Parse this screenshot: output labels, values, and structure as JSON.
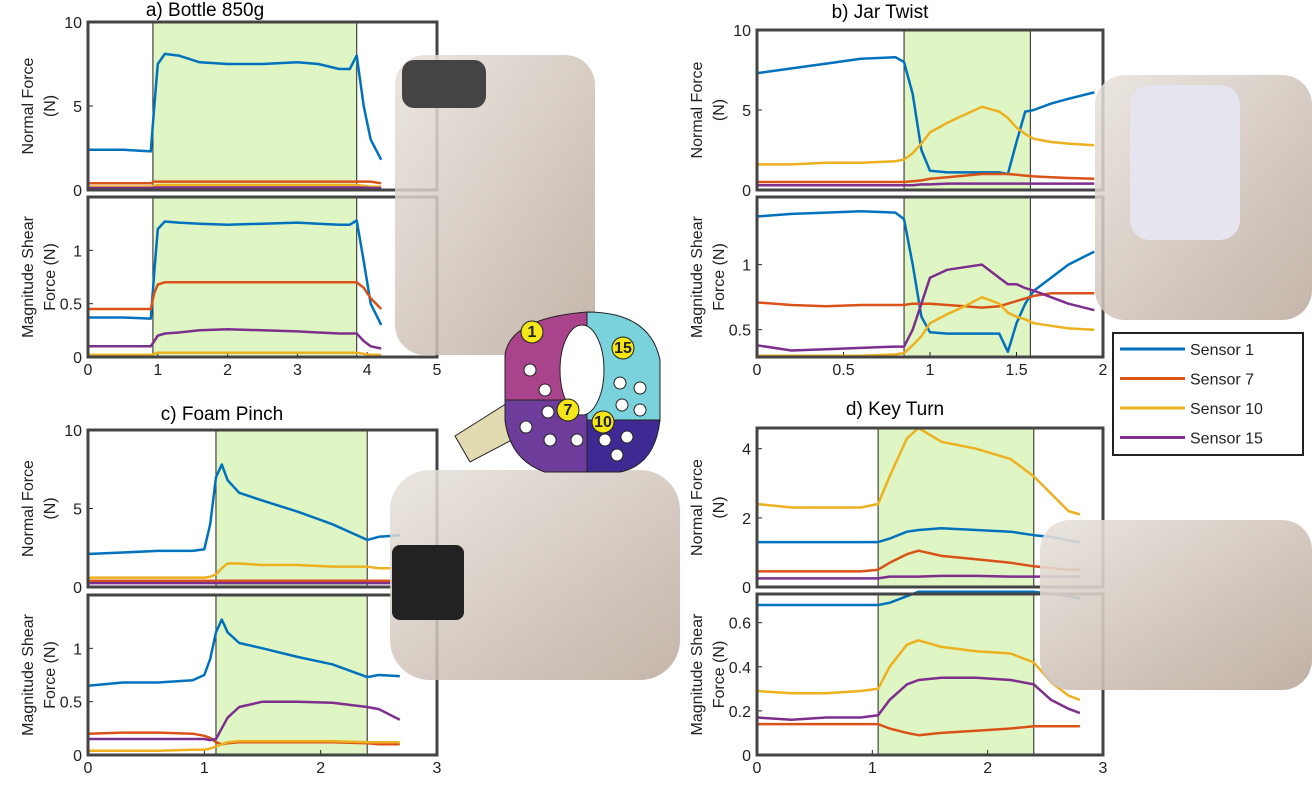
{
  "chart_data": [
    {
      "type": "line",
      "title": "a) Bottle 850g",
      "ylabel": [
        "Normal Force",
        "(N)"
      ],
      "x": [
        0,
        0.5,
        0.9,
        0.95,
        1.0,
        1.1,
        1.3,
        1.6,
        2,
        2.5,
        3,
        3.3,
        3.6,
        3.75,
        3.85,
        3.95,
        4.05,
        4.2
      ],
      "xlim": [
        0,
        5
      ],
      "ylim": [
        0,
        10
      ],
      "yticks": [
        0,
        5,
        10
      ],
      "highlight": [
        0.93,
        3.85
      ],
      "series": [
        {
          "values": [
            2.4,
            2.4,
            2.3,
            5,
            7.5,
            8.1,
            8.0,
            7.6,
            7.5,
            7.5,
            7.6,
            7.5,
            7.2,
            7.2,
            8.0,
            5,
            3,
            1.8
          ]
        },
        {
          "values": [
            0.4,
            0.4,
            0.4,
            0.5,
            0.5,
            0.5,
            0.5,
            0.5,
            0.5,
            0.5,
            0.5,
            0.5,
            0.5,
            0.5,
            0.5,
            0.5,
            0.5,
            0.4
          ]
        },
        {
          "values": [
            0.2,
            0.2,
            0.2,
            0.25,
            0.3,
            0.3,
            0.3,
            0.3,
            0.3,
            0.3,
            0.3,
            0.3,
            0.3,
            0.3,
            0.3,
            0.25,
            0.2,
            0.2
          ]
        },
        {
          "values": [
            0.12,
            0.12,
            0.12,
            0.14,
            0.15,
            0.15,
            0.15,
            0.15,
            0.15,
            0.15,
            0.15,
            0.15,
            0.15,
            0.15,
            0.15,
            0.14,
            0.12,
            0.12
          ]
        }
      ]
    },
    {
      "type": "line",
      "ylabel": [
        "Magnitude Shear",
        "Force (N)"
      ],
      "x": [
        0,
        0.5,
        0.9,
        0.95,
        1.0,
        1.1,
        1.3,
        1.6,
        2,
        2.5,
        3,
        3.3,
        3.6,
        3.75,
        3.85,
        3.95,
        4.05,
        4.2
      ],
      "xlim": [
        0,
        5
      ],
      "xticks": [
        0,
        1,
        2,
        3,
        4,
        5
      ],
      "ylim": [
        0,
        1.5
      ],
      "yticks": [
        0,
        0.5,
        1
      ],
      "highlight": [
        0.93,
        3.85
      ],
      "series": [
        {
          "values": [
            0.37,
            0.37,
            0.36,
            0.8,
            1.2,
            1.27,
            1.26,
            1.25,
            1.24,
            1.25,
            1.26,
            1.25,
            1.24,
            1.24,
            1.28,
            0.9,
            0.5,
            0.3
          ]
        },
        {
          "values": [
            0.45,
            0.45,
            0.45,
            0.6,
            0.68,
            0.7,
            0.7,
            0.7,
            0.7,
            0.7,
            0.7,
            0.7,
            0.7,
            0.7,
            0.7,
            0.65,
            0.55,
            0.45
          ]
        },
        {
          "values": [
            0.02,
            0.02,
            0.02,
            0.03,
            0.04,
            0.04,
            0.04,
            0.04,
            0.04,
            0.04,
            0.04,
            0.04,
            0.04,
            0.04,
            0.04,
            0.03,
            0.02,
            0.02
          ]
        },
        {
          "values": [
            0.1,
            0.1,
            0.1,
            0.15,
            0.2,
            0.22,
            0.23,
            0.25,
            0.26,
            0.25,
            0.24,
            0.23,
            0.22,
            0.22,
            0.22,
            0.15,
            0.1,
            0.08
          ]
        }
      ]
    },
    {
      "type": "line",
      "title": "b) Jar Twist",
      "ylabel": [
        "Normal Force",
        "(N)"
      ],
      "x": [
        0,
        0.2,
        0.4,
        0.6,
        0.8,
        0.85,
        0.9,
        0.95,
        1.0,
        1.1,
        1.2,
        1.3,
        1.4,
        1.45,
        1.5,
        1.55,
        1.6,
        1.7,
        1.8,
        1.95
      ],
      "xlim": [
        0,
        2
      ],
      "ylim": [
        0,
        10
      ],
      "yticks": [
        0,
        5,
        10
      ],
      "highlight": [
        0.85,
        1.58
      ],
      "series": [
        {
          "values": [
            7.3,
            7.6,
            7.9,
            8.2,
            8.3,
            8.0,
            6,
            2.5,
            1.2,
            1.1,
            1.1,
            1.1,
            1.1,
            1.0,
            3,
            4.9,
            5,
            5.4,
            5.7,
            6.1
          ]
        },
        {
          "values": [
            0.5,
            0.5,
            0.5,
            0.5,
            0.5,
            0.5,
            0.55,
            0.6,
            0.7,
            0.8,
            0.9,
            1.0,
            1.0,
            1.0,
            0.95,
            0.9,
            0.85,
            0.8,
            0.75,
            0.7
          ]
        },
        {
          "values": [
            1.6,
            1.6,
            1.7,
            1.7,
            1.8,
            1.9,
            2.3,
            2.9,
            3.6,
            4.2,
            4.7,
            5.2,
            4.9,
            4.5,
            3.9,
            3.5,
            3.2,
            3.0,
            2.9,
            2.8
          ]
        },
        {
          "values": [
            0.3,
            0.3,
            0.3,
            0.3,
            0.3,
            0.3,
            0.3,
            0.35,
            0.35,
            0.4,
            0.4,
            0.4,
            0.4,
            0.4,
            0.4,
            0.4,
            0.4,
            0.4,
            0.4,
            0.4
          ]
        }
      ]
    },
    {
      "type": "line",
      "ylabel": [
        "Magnitude Shear",
        "Force (N)"
      ],
      "x": [
        0,
        0.2,
        0.4,
        0.6,
        0.8,
        0.85,
        0.9,
        0.95,
        1.0,
        1.1,
        1.2,
        1.3,
        1.4,
        1.45,
        1.5,
        1.55,
        1.6,
        1.7,
        1.8,
        1.95
      ],
      "xlim": [
        0,
        2
      ],
      "xticks": [
        0,
        0.5,
        1,
        1.5,
        2
      ],
      "ylim": [
        0.29,
        1.52
      ],
      "yticks": [
        0.5,
        1
      ],
      "highlight": [
        0.85,
        1.58
      ],
      "series": [
        {
          "values": [
            1.37,
            1.39,
            1.4,
            1.41,
            1.4,
            1.35,
            1.0,
            0.6,
            0.48,
            0.47,
            0.47,
            0.47,
            0.47,
            0.33,
            0.55,
            0.7,
            0.8,
            0.9,
            1.0,
            1.1
          ]
        },
        {
          "values": [
            0.71,
            0.69,
            0.68,
            0.69,
            0.69,
            0.69,
            0.7,
            0.7,
            0.7,
            0.69,
            0.68,
            0.67,
            0.68,
            0.7,
            0.72,
            0.74,
            0.76,
            0.78,
            0.78,
            0.78
          ]
        },
        {
          "values": [
            0.3,
            0.3,
            0.3,
            0.3,
            0.31,
            0.32,
            0.38,
            0.45,
            0.55,
            0.62,
            0.68,
            0.75,
            0.7,
            0.63,
            0.6,
            0.58,
            0.55,
            0.53,
            0.51,
            0.5
          ]
        },
        {
          "values": [
            0.38,
            0.34,
            0.35,
            0.36,
            0.37,
            0.37,
            0.5,
            0.7,
            0.9,
            0.96,
            0.98,
            1.0,
            0.9,
            0.85,
            0.85,
            0.82,
            0.8,
            0.75,
            0.7,
            0.65
          ]
        }
      ]
    },
    {
      "type": "line",
      "title": "c) Foam Pinch",
      "ylabel": [
        "Normal Force",
        "(N)"
      ],
      "x": [
        0,
        0.3,
        0.6,
        0.9,
        1.0,
        1.05,
        1.1,
        1.15,
        1.2,
        1.3,
        1.5,
        1.8,
        2.1,
        2.4,
        2.5,
        2.68
      ],
      "xlim": [
        0,
        3
      ],
      "ylim": [
        0,
        10
      ],
      "yticks": [
        0,
        5,
        10
      ],
      "highlight": [
        1.1,
        2.4
      ],
      "series": [
        {
          "values": [
            2.1,
            2.2,
            2.3,
            2.3,
            2.4,
            4,
            7,
            7.8,
            6.8,
            6.0,
            5.5,
            4.8,
            4.0,
            3.0,
            3.2,
            3.3
          ]
        },
        {
          "values": [
            0.4,
            0.4,
            0.4,
            0.4,
            0.4,
            0.4,
            0.4,
            0.4,
            0.4,
            0.4,
            0.4,
            0.4,
            0.4,
            0.4,
            0.4,
            0.4
          ]
        },
        {
          "values": [
            0.6,
            0.6,
            0.6,
            0.6,
            0.6,
            0.65,
            0.8,
            1.2,
            1.5,
            1.5,
            1.4,
            1.4,
            1.3,
            1.3,
            1.2,
            1.2
          ]
        },
        {
          "values": [
            0.25,
            0.25,
            0.25,
            0.25,
            0.25,
            0.25,
            0.25,
            0.25,
            0.25,
            0.25,
            0.25,
            0.25,
            0.25,
            0.25,
            0.25,
            0.25
          ]
        }
      ]
    },
    {
      "type": "line",
      "ylabel": [
        "Magnitude Shear",
        "Force (N)"
      ],
      "x": [
        0,
        0.3,
        0.6,
        0.9,
        1.0,
        1.05,
        1.1,
        1.15,
        1.2,
        1.3,
        1.5,
        1.8,
        2.1,
        2.4,
        2.5,
        2.68
      ],
      "xlim": [
        0,
        3
      ],
      "xticks": [
        0,
        1,
        2,
        3
      ],
      "ylim": [
        0,
        1.5
      ],
      "yticks": [
        0,
        0.5,
        1
      ],
      "highlight": [
        1.1,
        2.4
      ],
      "series": [
        {
          "values": [
            0.65,
            0.68,
            0.68,
            0.7,
            0.75,
            0.9,
            1.15,
            1.27,
            1.15,
            1.05,
            1.0,
            0.92,
            0.85,
            0.73,
            0.75,
            0.74
          ]
        },
        {
          "values": [
            0.2,
            0.21,
            0.21,
            0.2,
            0.18,
            0.16,
            0.12,
            0.1,
            0.11,
            0.12,
            0.12,
            0.12,
            0.12,
            0.11,
            0.1,
            0.1
          ]
        },
        {
          "values": [
            0.04,
            0.04,
            0.04,
            0.05,
            0.05,
            0.06,
            0.08,
            0.1,
            0.12,
            0.13,
            0.13,
            0.13,
            0.13,
            0.12,
            0.12,
            0.12
          ]
        },
        {
          "values": [
            0.15,
            0.15,
            0.15,
            0.15,
            0.15,
            0.14,
            0.15,
            0.25,
            0.35,
            0.45,
            0.5,
            0.5,
            0.49,
            0.45,
            0.43,
            0.33
          ]
        }
      ]
    },
    {
      "type": "line",
      "title": "d) Key Turn",
      "ylabel": [
        "Normal Force",
        "(N)"
      ],
      "x": [
        0,
        0.3,
        0.6,
        0.9,
        1.05,
        1.15,
        1.3,
        1.4,
        1.6,
        1.9,
        2.2,
        2.4,
        2.55,
        2.7,
        2.8
      ],
      "xlim": [
        0,
        3
      ],
      "ylim": [
        0,
        4.6
      ],
      "yticks": [
        0,
        2,
        4
      ],
      "highlight": [
        1.05,
        2.4
      ],
      "series": [
        {
          "values": [
            1.3,
            1.3,
            1.3,
            1.3,
            1.3,
            1.4,
            1.6,
            1.65,
            1.7,
            1.65,
            1.6,
            1.5,
            1.45,
            1.35,
            1.3
          ]
        },
        {
          "values": [
            0.45,
            0.45,
            0.45,
            0.45,
            0.5,
            0.7,
            0.95,
            1.05,
            0.9,
            0.8,
            0.7,
            0.6,
            0.55,
            0.5,
            0.5
          ]
        },
        {
          "values": [
            2.4,
            2.3,
            2.3,
            2.3,
            2.4,
            3.2,
            4.3,
            4.6,
            4.2,
            4.0,
            3.7,
            3.2,
            2.7,
            2.2,
            2.1
          ]
        },
        {
          "values": [
            0.25,
            0.25,
            0.25,
            0.25,
            0.25,
            0.3,
            0.3,
            0.3,
            0.32,
            0.32,
            0.3,
            0.3,
            0.3,
            0.3,
            0.3
          ]
        }
      ]
    },
    {
      "type": "line",
      "ylabel": [
        "Magnitude Shear",
        "Force (N)"
      ],
      "x": [
        0,
        0.3,
        0.6,
        0.9,
        1.05,
        1.15,
        1.3,
        1.4,
        1.6,
        1.9,
        2.2,
        2.4,
        2.55,
        2.7,
        2.8
      ],
      "xlim": [
        0,
        3
      ],
      "xticks": [
        0,
        1,
        2,
        3
      ],
      "ylim": [
        0,
        0.73
      ],
      "yticks": [
        0,
        0.2,
        0.4,
        0.6
      ],
      "highlight": [
        1.05,
        2.4
      ],
      "series": [
        {
          "values": [
            0.68,
            0.68,
            0.68,
            0.68,
            0.68,
            0.69,
            0.72,
            0.74,
            0.74,
            0.74,
            0.74,
            0.74,
            0.73,
            0.72,
            0.71
          ]
        },
        {
          "values": [
            0.14,
            0.14,
            0.14,
            0.14,
            0.14,
            0.12,
            0.1,
            0.09,
            0.1,
            0.11,
            0.12,
            0.13,
            0.13,
            0.13,
            0.13
          ]
        },
        {
          "values": [
            0.29,
            0.28,
            0.28,
            0.29,
            0.3,
            0.4,
            0.5,
            0.52,
            0.49,
            0.47,
            0.46,
            0.42,
            0.33,
            0.27,
            0.25
          ]
        },
        {
          "values": [
            0.17,
            0.16,
            0.17,
            0.17,
            0.18,
            0.25,
            0.32,
            0.34,
            0.35,
            0.35,
            0.34,
            0.32,
            0.25,
            0.21,
            0.19
          ]
        }
      ]
    }
  ],
  "legend": [
    {
      "name": "Sensor 1",
      "color": "#0072bd"
    },
    {
      "name": "Sensor 7",
      "color": "#d95319"
    },
    {
      "name": "Sensor 10",
      "color": "#edb120"
    },
    {
      "name": "Sensor 15",
      "color": "#7e2f8e"
    }
  ],
  "diagram": {
    "labels": [
      "1",
      "15",
      "7",
      "10"
    ]
  }
}
